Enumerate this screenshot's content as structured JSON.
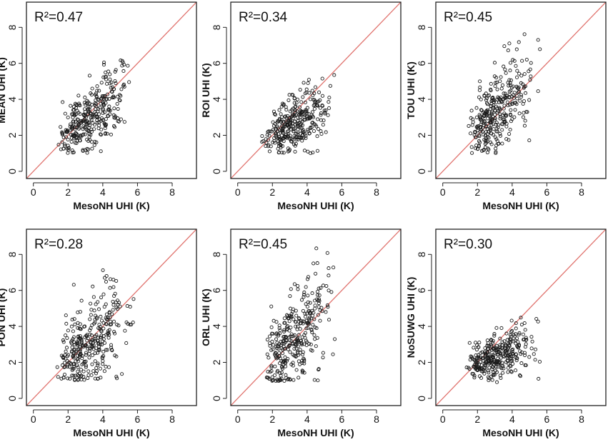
{
  "chart_data": [
    {
      "type": "scatter",
      "title": "",
      "annotation": "R²=0.47",
      "r2": 0.47,
      "xlabel": "MesoNH UHI (K)",
      "ylabel": "MEAN UHI (K)",
      "xlim": [
        -0.4,
        9.4
      ],
      "ylim": [
        -0.4,
        9.4
      ],
      "xticks": [
        "0",
        "2",
        "4",
        "6",
        "8"
      ],
      "yticks": [
        "0",
        "2",
        "4",
        "6",
        "8"
      ],
      "reference_line": "y = x",
      "reference_color": "#e0726d",
      "n_points": 330,
      "y_spread": 0.85,
      "slope": 0.62,
      "intercept": 0.95,
      "x_range": [
        0.6,
        6.2
      ],
      "y_range": [
        1.0,
        6.2
      ]
    },
    {
      "type": "scatter",
      "title": "",
      "annotation": "R²=0.34",
      "r2": 0.34,
      "xlabel": "MesoNH UHI (K)",
      "ylabel": "ROI UHI (K)",
      "xlim": [
        -0.4,
        9.4
      ],
      "ylim": [
        -0.4,
        9.4
      ],
      "xticks": [
        "0",
        "2",
        "4",
        "6",
        "8"
      ],
      "yticks": [
        "0",
        "2",
        "4",
        "6",
        "8"
      ],
      "reference_line": "y = x",
      "reference_color": "#e0726d",
      "n_points": 330,
      "y_spread": 0.75,
      "slope": 0.42,
      "intercept": 1.25,
      "x_range": [
        0.6,
        6.0
      ],
      "y_range": [
        0.9,
        5.9
      ]
    },
    {
      "type": "scatter",
      "title": "",
      "annotation": "R²=0.45",
      "r2": 0.45,
      "xlabel": "MesoNH UHI (K)",
      "ylabel": "TOU UHI (K)",
      "xlim": [
        -0.4,
        9.4
      ],
      "ylim": [
        -0.4,
        9.4
      ],
      "xticks": [
        "0",
        "2",
        "4",
        "6",
        "8"
      ],
      "yticks": [
        "0",
        "2",
        "4",
        "6",
        "8"
      ],
      "reference_line": "y = x",
      "reference_color": "#e0726d",
      "n_points": 330,
      "y_spread": 1.05,
      "slope": 0.85,
      "intercept": 0.55,
      "x_range": [
        0.6,
        6.2
      ],
      "y_range": [
        1.0,
        8.1
      ]
    },
    {
      "type": "scatter",
      "title": "",
      "annotation": "R²=0.28",
      "r2": 0.28,
      "xlabel": "MesoNH UHI (K)",
      "ylabel": "PON UHI (K)",
      "xlim": [
        -0.4,
        9.4
      ],
      "ylim": [
        -0.4,
        9.4
      ],
      "xticks": [
        "0",
        "2",
        "4",
        "6",
        "8"
      ],
      "yticks": [
        "0",
        "2",
        "4",
        "6",
        "8"
      ],
      "reference_line": "y = x",
      "reference_color": "#e0726d",
      "n_points": 330,
      "y_spread": 1.2,
      "slope": 0.62,
      "intercept": 1.15,
      "x_range": [
        0.6,
        6.0
      ],
      "y_range": [
        1.0,
        8.5
      ]
    },
    {
      "type": "scatter",
      "title": "",
      "annotation": "R²=0.45",
      "r2": 0.45,
      "xlabel": "MesoNH UHI (K)",
      "ylabel": "ORL UHI (K)",
      "xlim": [
        -0.4,
        9.4
      ],
      "ylim": [
        -0.4,
        9.4
      ],
      "xticks": [
        "0",
        "2",
        "4",
        "6",
        "8"
      ],
      "yticks": [
        "0",
        "2",
        "4",
        "6",
        "8"
      ],
      "reference_line": "y = x",
      "reference_color": "#e0726d",
      "n_points": 330,
      "y_spread": 1.25,
      "slope": 0.95,
      "intercept": 0.35,
      "x_range": [
        0.6,
        6.0
      ],
      "y_range": [
        0.9,
        8.4
      ]
    },
    {
      "type": "scatter",
      "title": "",
      "annotation": "R²=0.30",
      "r2": 0.3,
      "xlabel": "MesoNH UHI (K)",
      "ylabel": "NoSUWG UHI (K)",
      "xlim": [
        -0.4,
        9.4
      ],
      "ylim": [
        -0.4,
        9.4
      ],
      "xticks": [
        "0",
        "2",
        "4",
        "6",
        "8"
      ],
      "yticks": [
        "0",
        "2",
        "4",
        "6",
        "8"
      ],
      "reference_line": "y = x",
      "reference_color": "#e0726d",
      "n_points": 330,
      "y_spread": 0.6,
      "slope": 0.32,
      "intercept": 1.35,
      "x_range": [
        0.6,
        6.0
      ],
      "y_range": [
        0.9,
        4.5
      ]
    }
  ]
}
